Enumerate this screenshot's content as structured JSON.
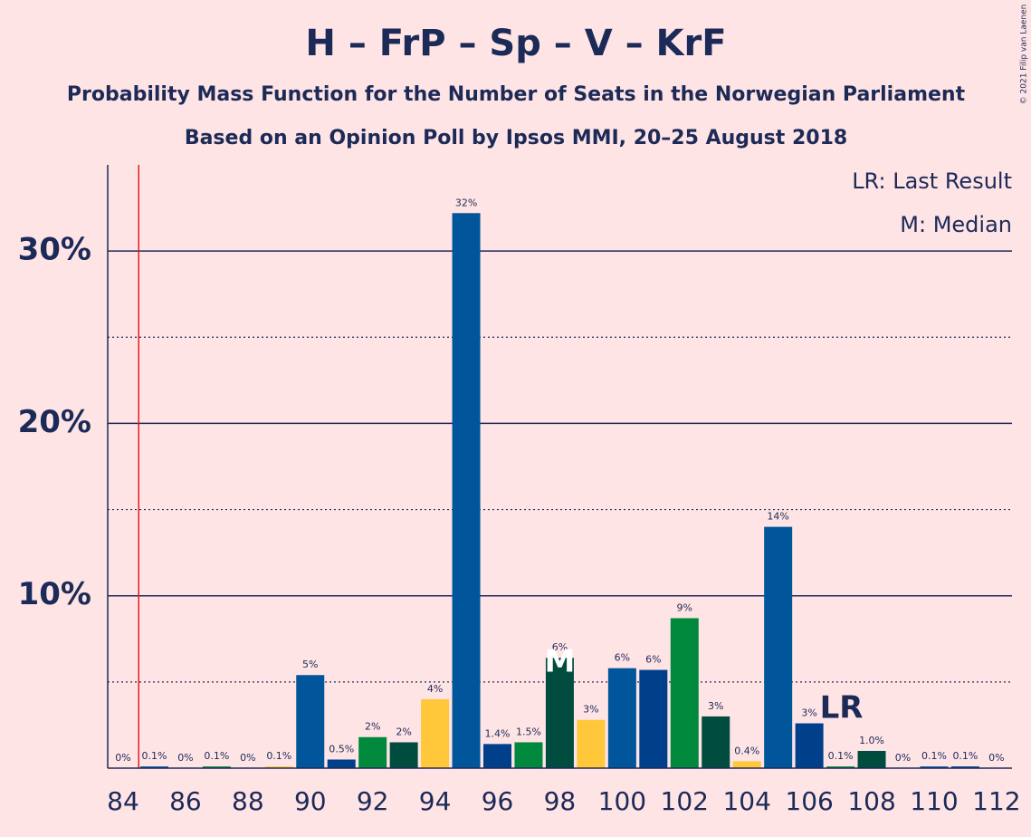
{
  "chart_data": {
    "type": "bar",
    "title": "H – FrP – Sp – V – KrF",
    "subtitle": "Probability Mass Function for the Number of Seats in the Norwegian Parliament",
    "subtitle2": "Based on an Opinion Poll by Ipsos MMI, 20–25 August 2018",
    "categories": [
      "84",
      null,
      "86",
      null,
      "88",
      null,
      "90",
      null,
      "92",
      null,
      "94",
      null,
      "96",
      null,
      "98",
      null,
      "100",
      null,
      "102",
      null,
      "104",
      null,
      "106",
      null,
      "108",
      null,
      "110",
      null,
      "112"
    ],
    "values": [
      0,
      0.1,
      0,
      0.1,
      0,
      0.1,
      5.4,
      0.5,
      1.8,
      1.5,
      4.0,
      32.2,
      1.4,
      1.5,
      6.4,
      2.8,
      5.8,
      5.7,
      8.7,
      3.0,
      0.4,
      14.0,
      2.6,
      0.1,
      1.0,
      0,
      0.1,
      0.1,
      0
    ],
    "value_labels": [
      "0%",
      "0.1%",
      "0%",
      "0.1%",
      "0%",
      "0.1%",
      "5%",
      "0.5%",
      "2%",
      "2%",
      "4%",
      "32%",
      "1.4%",
      "1.5%",
      "6%",
      "3%",
      "6%",
      "6%",
      "9%",
      "3%",
      "0.4%",
      "14%",
      "3%",
      "0.1%",
      "1.0%",
      "0%",
      "0.1%",
      "0.1%",
      "0%"
    ],
    "colors": [
      "#ffc83a",
      "#00559b",
      "#003f8a",
      "#00883d",
      "#004d40",
      "#ffc83a",
      "#00559b",
      "#003f8a",
      "#00883d",
      "#004d40",
      "#ffc83a",
      "#00559b",
      "#003f8a",
      "#00883d",
      "#004d40",
      "#ffc83a",
      "#00559b",
      "#003f8a",
      "#00883d",
      "#004d40",
      "#ffc83a",
      "#00559b",
      "#003f8a",
      "#00883d",
      "#004d40",
      "#ffc83a",
      "#00559b",
      "#003f8a",
      "#00883d"
    ],
    "ylim": [
      0,
      35
    ],
    "yticks": [
      {
        "value": 10,
        "label": "10%"
      },
      {
        "value": 20,
        "label": "20%"
      },
      {
        "value": 30,
        "label": "30%"
      }
    ],
    "minor_yticks": [
      5,
      15,
      25
    ],
    "grid": true,
    "last_result_line": 84.5,
    "annotations": [
      {
        "text": "M",
        "category": 14
      },
      {
        "text": "LR",
        "category": 23
      }
    ],
    "legend": [
      "LR: Last Result",
      "M: Median"
    ],
    "credit": "© 2021 Filip van Laenen"
  }
}
